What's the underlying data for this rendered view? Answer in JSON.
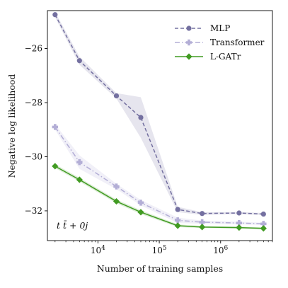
{
  "chart_data": {
    "type": "line",
    "xlabel": "Number of training samples",
    "ylabel": "Negative log likelihood",
    "xscale": "log",
    "xlim": [
      1500,
      7000000
    ],
    "ylim": [
      -33.1,
      -24.6
    ],
    "x": [
      2000,
      5000,
      20000,
      50000,
      200000,
      500000,
      2000000,
      5000000
    ],
    "xticks": [
      {
        "value": 10000,
        "base": "10",
        "exp": "4"
      },
      {
        "value": 100000,
        "base": "10",
        "exp": "5"
      },
      {
        "value": 1000000,
        "base": "10",
        "exp": "6"
      }
    ],
    "yticks": [
      {
        "value": -26,
        "label": "−26"
      },
      {
        "value": -28,
        "label": "−28"
      },
      {
        "value": -30,
        "label": "−30"
      },
      {
        "value": -32,
        "label": "−32"
      }
    ],
    "grid": false,
    "legend_position": "top-right",
    "series": [
      {
        "name": "MLP",
        "color": "#7470a0",
        "marker": "circle",
        "linestyle": "dashed",
        "values": [
          -24.75,
          -26.45,
          -27.75,
          -28.55,
          -31.95,
          -32.1,
          -32.08,
          -32.12
        ],
        "band_lower": [
          -24.85,
          -26.6,
          -27.85,
          -29.3,
          -32.05,
          -32.15,
          -32.12,
          -32.16
        ],
        "band_upper": [
          -24.65,
          -26.3,
          -27.65,
          -27.8,
          -31.85,
          -32.05,
          -32.04,
          -32.08
        ]
      },
      {
        "name": "Transformer",
        "color": "#b3aed6",
        "marker": "plus",
        "linestyle": "dashdot",
        "values": [
          -28.9,
          -30.2,
          -31.1,
          -31.7,
          -32.35,
          -32.42,
          -32.45,
          -32.48
        ],
        "band_lower": [
          -29.0,
          -30.45,
          -31.2,
          -31.8,
          -32.45,
          -32.48,
          -32.5,
          -32.52
        ],
        "band_upper": [
          -28.8,
          -29.95,
          -31.0,
          -31.6,
          -32.25,
          -32.36,
          -32.4,
          -32.44
        ]
      },
      {
        "name": "L-GATr",
        "color": "#419b22",
        "marker": "diamond",
        "linestyle": "solid",
        "values": [
          -30.35,
          -30.85,
          -31.65,
          -32.05,
          -32.55,
          -32.6,
          -32.62,
          -32.65
        ],
        "band_lower": [
          -30.42,
          -30.92,
          -31.72,
          -32.12,
          -32.6,
          -32.64,
          -32.66,
          -32.69
        ],
        "band_upper": [
          -30.28,
          -30.78,
          -31.58,
          -31.98,
          -32.5,
          -32.56,
          -32.58,
          -32.61
        ]
      }
    ],
    "annotation": "t t̄ + 0j"
  }
}
